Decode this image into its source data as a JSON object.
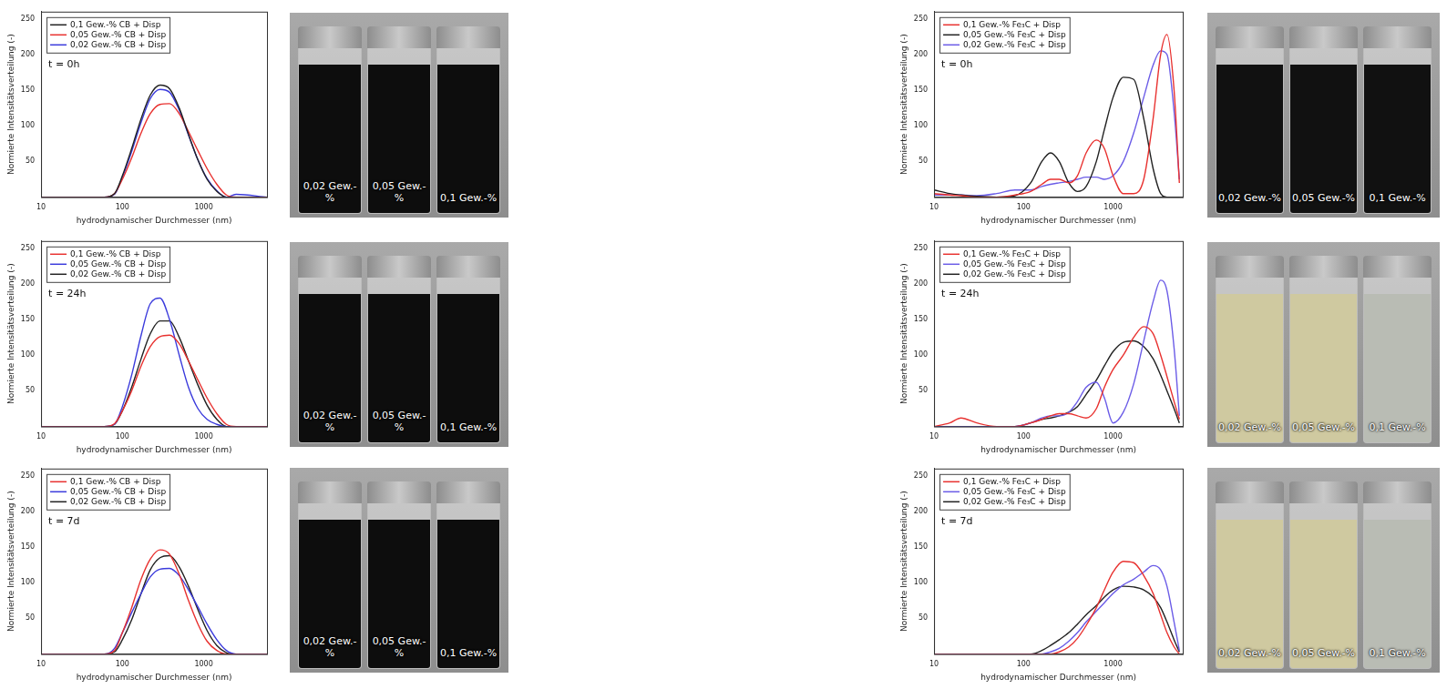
{
  "chart_data": [
    {
      "type": "line",
      "annotation": "t = 0h",
      "x_label": "hydrodynamischer Durchmesser (nm)",
      "y_label": "Normierte Intensitätsverteilung (-)",
      "log": "x",
      "grid": false,
      "legend": "upper left",
      "xlim": [
        10,
        6000
      ],
      "xticks": [
        10,
        100,
        1000
      ],
      "ylim": [
        0,
        260
      ],
      "yticks": [
        50,
        100,
        150,
        200,
        250
      ],
      "x": [
        10,
        60,
        80,
        100,
        130,
        170,
        220,
        290,
        380,
        500,
        650,
        850,
        1100,
        1450,
        1900,
        2500,
        6000
      ],
      "series": [
        {
          "name": "0,1 Gew.-% CB + Disp",
          "color": "#222222",
          "values": [
            0,
            0,
            5,
            30,
            68,
            110,
            143,
            157,
            152,
            125,
            88,
            52,
            25,
            8,
            0,
            0,
            0
          ]
        },
        {
          "name": "0,05 Gew.-% CB + Disp",
          "color": "#e8312f",
          "values": [
            0,
            0,
            5,
            25,
            55,
            90,
            117,
            130,
            131,
            117,
            92,
            65,
            40,
            18,
            3,
            0,
            0
          ]
        },
        {
          "name": "0,02 Gew.-% CB + Disp",
          "color": "#3b3bdc",
          "values": [
            0,
            0,
            4,
            28,
            64,
            105,
            138,
            151,
            147,
            122,
            87,
            52,
            26,
            9,
            0,
            4,
            0
          ]
        }
      ]
    },
    {
      "type": "line",
      "annotation": "t = 24h",
      "x_label": "hydrodynamischer Durchmesser (nm)",
      "y_label": "Normierte Intensitätsverteilung (-)",
      "log": "x",
      "grid": false,
      "legend": "upper left",
      "xlim": [
        10,
        6000
      ],
      "xticks": [
        10,
        100,
        1000
      ],
      "ylim": [
        0,
        260
      ],
      "yticks": [
        50,
        100,
        150,
        200,
        250
      ],
      "x": [
        10,
        60,
        80,
        100,
        130,
        170,
        220,
        290,
        380,
        500,
        650,
        850,
        1100,
        1450,
        1900,
        2500,
        6000
      ],
      "series": [
        {
          "name": "0,1 Gew.-% CB + Disp",
          "color": "#e8312f",
          "values": [
            0,
            0,
            4,
            22,
            50,
            85,
            112,
            126,
            128,
            116,
            92,
            65,
            40,
            18,
            3,
            0,
            0
          ]
        },
        {
          "name": "0,05 Gew.-% CB + Disp",
          "color": "#3b3bdc",
          "values": [
            0,
            0,
            3,
            28,
            72,
            128,
            172,
            180,
            150,
            100,
            55,
            25,
            10,
            3,
            0,
            0,
            0
          ]
        },
        {
          "name": "0,02 Gew.-% CB + Disp",
          "color": "#222222",
          "values": [
            0,
            0,
            3,
            22,
            55,
            95,
            130,
            148,
            148,
            125,
            92,
            58,
            30,
            10,
            0,
            0,
            0
          ]
        }
      ]
    },
    {
      "type": "line",
      "annotation": "t = 7d",
      "x_label": "hydrodynamischer Durchmesser (nm)",
      "y_label": "Normierte Intensitätsverteilung (-)",
      "log": "x",
      "grid": false,
      "legend": "upper left",
      "xlim": [
        10,
        6000
      ],
      "xticks": [
        10,
        100,
        1000
      ],
      "ylim": [
        0,
        260
      ],
      "yticks": [
        50,
        100,
        150,
        200,
        250
      ],
      "x": [
        10,
        60,
        80,
        100,
        130,
        170,
        220,
        290,
        380,
        500,
        650,
        850,
        1100,
        1450,
        1900,
        2500,
        6000
      ],
      "series": [
        {
          "name": "0,1 Gew.-% CB + Disp",
          "color": "#e8312f",
          "values": [
            0,
            0,
            5,
            30,
            65,
            105,
            133,
            146,
            140,
            112,
            75,
            42,
            18,
            5,
            0,
            0,
            0
          ]
        },
        {
          "name": "0,05 Gew.-% CB + Disp",
          "color": "#3b3bdc",
          "values": [
            0,
            0,
            8,
            30,
            58,
            85,
            108,
            119,
            120,
            110,
            90,
            66,
            42,
            20,
            5,
            0,
            0
          ]
        },
        {
          "name": "0,02 Gew.-% CB + Disp",
          "color": "#222222",
          "values": [
            0,
            0,
            3,
            20,
            48,
            85,
            118,
            135,
            138,
            122,
            95,
            62,
            33,
            12,
            2,
            0,
            0
          ]
        }
      ]
    },
    {
      "type": "line",
      "annotation": "t = 0h",
      "x_label": "hydrodynamischer Durchmesser (nm)",
      "y_label": "Normierte Intensitätsverteilung (-)",
      "log": "x",
      "grid": false,
      "legend": "upper left",
      "xlim": [
        10,
        6000
      ],
      "xticks": [
        10,
        100,
        1000
      ],
      "ylim": [
        0,
        260
      ],
      "yticks": [
        50,
        100,
        150,
        200,
        250
      ],
      "x": [
        10,
        15,
        20,
        30,
        50,
        80,
        120,
        160,
        200,
        250,
        320,
        400,
        500,
        650,
        800,
        1000,
        1300,
        1700,
        2200,
        2800,
        3400,
        4000,
        4800,
        5500
      ],
      "series": [
        {
          "name": "0,1 Gew.-% Fe₃C + Disp",
          "color": "#e8312f",
          "values": [
            5,
            3,
            2,
            0,
            0,
            3,
            8,
            18,
            25,
            25,
            20,
            30,
            62,
            80,
            68,
            30,
            5,
            5,
            25,
            110,
            200,
            228,
            150,
            20
          ]
        },
        {
          "name": "0,05 Gew.-% Fe₃C + Disp",
          "color": "#222222",
          "values": [
            10,
            5,
            3,
            1,
            0,
            2,
            20,
            50,
            62,
            50,
            20,
            8,
            15,
            50,
            95,
            140,
            168,
            165,
            110,
            40,
            5,
            0,
            0,
            0
          ]
        },
        {
          "name": "0,02 Gew.-% Fe₃C + Disp",
          "color": "#6b5ce7",
          "values": [
            3,
            3,
            3,
            2,
            5,
            10,
            10,
            15,
            18,
            20,
            22,
            25,
            28,
            28,
            25,
            30,
            50,
            90,
            140,
            185,
            205,
            200,
            120,
            25
          ]
        }
      ]
    },
    {
      "type": "line",
      "annotation": "t = 24h",
      "x_label": "hydrodynamischer Durchmesser (nm)",
      "y_label": "Normierte Intensitätsverteilung (-)",
      "log": "x",
      "grid": false,
      "legend": "upper left",
      "xlim": [
        10,
        6000
      ],
      "xticks": [
        10,
        100,
        1000
      ],
      "ylim": [
        0,
        260
      ],
      "yticks": [
        50,
        100,
        150,
        200,
        250
      ],
      "x": [
        10,
        15,
        20,
        30,
        50,
        80,
        120,
        160,
        200,
        250,
        320,
        400,
        500,
        650,
        800,
        1000,
        1300,
        1700,
        2200,
        2800,
        3400,
        4000,
        4800,
        5500
      ],
      "series": [
        {
          "name": "0,1 Gew.-% Fe₃C + Disp",
          "color": "#e8312f",
          "values": [
            0,
            5,
            12,
            5,
            0,
            0,
            5,
            10,
            15,
            18,
            18,
            15,
            12,
            25,
            55,
            80,
            100,
            125,
            140,
            130,
            100,
            70,
            35,
            10
          ]
        },
        {
          "name": "0,05 Gew.-% Fe₃C + Disp",
          "color": "#6b5ce7",
          "values": [
            0,
            0,
            0,
            0,
            0,
            0,
            5,
            12,
            15,
            15,
            20,
            35,
            55,
            62,
            40,
            5,
            20,
            60,
            120,
            175,
            205,
            190,
            110,
            15
          ]
        },
        {
          "name": "0,02 Gew.-% Fe₃C + Disp",
          "color": "#222222",
          "values": [
            0,
            0,
            0,
            0,
            0,
            0,
            5,
            10,
            12,
            15,
            20,
            28,
            45,
            65,
            85,
            105,
            118,
            120,
            112,
            95,
            72,
            50,
            25,
            5
          ]
        }
      ]
    },
    {
      "type": "line",
      "annotation": "t = 7d",
      "x_label": "hydrodynamischer Durchmesser (nm)",
      "y_label": "Normierte Intensitätsverteilung (-)",
      "log": "x",
      "grid": false,
      "legend": "upper left",
      "xlim": [
        10,
        6000
      ],
      "xticks": [
        10,
        100,
        1000
      ],
      "ylim": [
        0,
        260
      ],
      "yticks": [
        50,
        100,
        150,
        200,
        250
      ],
      "x": [
        10,
        15,
        20,
        30,
        50,
        80,
        120,
        160,
        200,
        250,
        320,
        400,
        500,
        650,
        800,
        1000,
        1300,
        1700,
        2200,
        2800,
        3400,
        4000,
        4800,
        5500
      ],
      "series": [
        {
          "name": "0,1 Gew.-% Fe₃C + Disp",
          "color": "#e8312f",
          "values": [
            0,
            0,
            0,
            0,
            0,
            0,
            0,
            0,
            0,
            3,
            10,
            22,
            40,
            65,
            90,
            115,
            130,
            128,
            110,
            85,
            55,
            30,
            10,
            0
          ]
        },
        {
          "name": "0,05 Gew.-% Fe₃C + Disp",
          "color": "#6b5ce7",
          "values": [
            0,
            0,
            0,
            0,
            0,
            0,
            0,
            0,
            3,
            8,
            18,
            30,
            45,
            60,
            72,
            85,
            97,
            105,
            115,
            124,
            118,
            95,
            45,
            5
          ]
        },
        {
          "name": "0,02 Gew.-% Fe₃C + Disp",
          "color": "#222222",
          "values": [
            0,
            0,
            0,
            0,
            0,
            0,
            0,
            5,
            12,
            20,
            30,
            42,
            55,
            68,
            80,
            90,
            95,
            94,
            90,
            80,
            65,
            45,
            20,
            3
          ]
        }
      ]
    }
  ],
  "photos": [
    {
      "labels": [
        "0,02 Gew.-%",
        "0,05 Gew.-%",
        "0,1 Gew.-%"
      ],
      "colors": [
        "#0d0d0d",
        "#0d0d0d",
        "#0d0d0d"
      ]
    },
    {
      "labels": [
        "0,02 Gew.-%",
        "0,05 Gew.-%",
        "0,1 Gew.-%"
      ],
      "colors": [
        "#0d0d0d",
        "#0d0d0d",
        "#0d0d0d"
      ]
    },
    {
      "labels": [
        "0,02 Gew.-%",
        "0,05 Gew.-%",
        "0,1 Gew.-%"
      ],
      "colors": [
        "#0d0d0d",
        "#0d0d0d",
        "#0d0d0d"
      ]
    },
    {
      "labels": [
        "0,02 Gew.-%",
        "0,05 Gew.-%",
        "0,1 Gew.-%"
      ],
      "colors": [
        "#111111",
        "#111111",
        "#111111"
      ]
    },
    {
      "labels": [
        "0,02 Gew.-%",
        "0,05 Gew.-%",
        "0,1 Gew.-%"
      ],
      "colors": [
        "#cfc9a0",
        "#cfc9a0",
        "#b9bcb4"
      ]
    },
    {
      "labels": [
        "0,02 Gew.-%",
        "0,05 Gew.-%",
        "0,1 Gew.-%"
      ],
      "colors": [
        "#cfc9a0",
        "#cfc9a0",
        "#b9bcb4"
      ]
    }
  ]
}
